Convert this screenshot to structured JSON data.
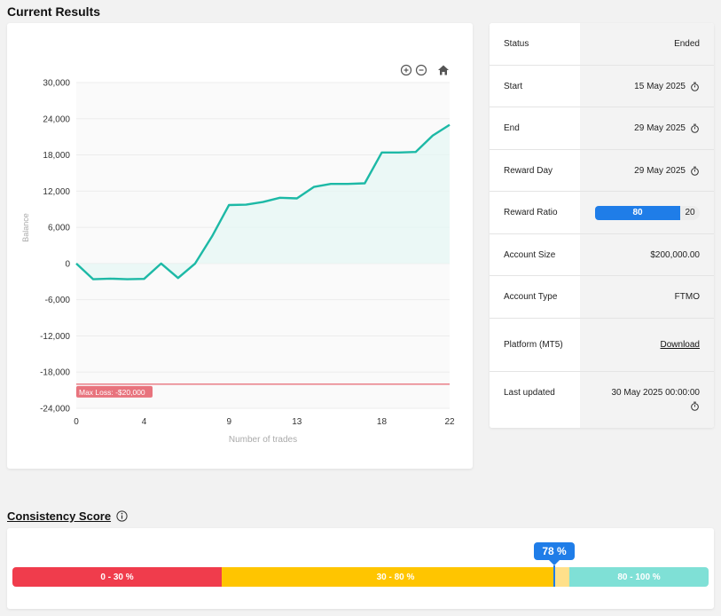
{
  "page": {
    "section_title": "Current Results"
  },
  "stats": {
    "status_label": "Status",
    "status_value": "Ended",
    "start_label": "Start",
    "start_value": "15 May 2025",
    "end_label": "End",
    "end_value": "29 May 2025",
    "reward_day_label": "Reward Day",
    "reward_day_value": "29 May 2025",
    "reward_ratio_label": "Reward Ratio",
    "reward_ratio_a": "80",
    "reward_ratio_b": "20",
    "account_size_label": "Account Size",
    "account_size_value": "$200,000.00",
    "account_type_label": "Account Type",
    "account_type_value": "FTMO",
    "platform_label": "Platform (MT5)",
    "platform_link": "Download",
    "last_updated_label": "Last updated",
    "last_updated_value": "30 May 2025 00:00:00"
  },
  "consistency": {
    "title": "Consistency Score",
    "score_label": "78 %",
    "score_value": 78,
    "segments": [
      "0 - 30 %",
      "30 - 80 %",
      "80 - 100 %"
    ]
  },
  "colors": {
    "line": "#1db9a6",
    "fill": "#e6f7f4",
    "max_loss": "#e8737d",
    "accent": "#1f7de8",
    "red": "#f03c4c",
    "yellow": "#ffc500",
    "teal": "#7fe0d6"
  },
  "chart_data": {
    "type": "area",
    "xlabel": "Number of trades",
    "ylabel": "Balance",
    "xlim": [
      0,
      22
    ],
    "ylim": [
      -24000,
      30000
    ],
    "x_ticks": [
      0,
      4,
      9,
      13,
      18,
      22
    ],
    "y_ticks": [
      30000,
      24000,
      18000,
      12000,
      6000,
      0,
      -6000,
      -12000,
      -18000,
      -24000
    ],
    "y_tick_labels": [
      "30,000",
      "24,000",
      "18,000",
      "12,000",
      "6,000",
      "0",
      "-6,000",
      "-12,000",
      "-18,000",
      "-24,000"
    ],
    "series": [
      {
        "values": [
          [
            0,
            0
          ],
          [
            1,
            -2600
          ],
          [
            2,
            -2500
          ],
          [
            3,
            -2600
          ],
          [
            4,
            -2550
          ],
          [
            5,
            0
          ],
          [
            6,
            -2400
          ],
          [
            7,
            0
          ],
          [
            8,
            4500
          ],
          [
            9,
            9700
          ],
          [
            10,
            9750
          ],
          [
            11,
            10200
          ],
          [
            12,
            10900
          ],
          [
            13,
            10800
          ],
          [
            14,
            12700
          ],
          [
            15,
            13200
          ],
          [
            16,
            13200
          ],
          [
            17,
            13300
          ],
          [
            18,
            18400
          ],
          [
            19,
            18400
          ],
          [
            20,
            18500
          ],
          [
            21,
            21200
          ],
          [
            22,
            23000
          ]
        ]
      }
    ],
    "annotations": [
      {
        "type": "hline",
        "y": -20000,
        "label": "Max Loss: -$20,000"
      }
    ]
  }
}
